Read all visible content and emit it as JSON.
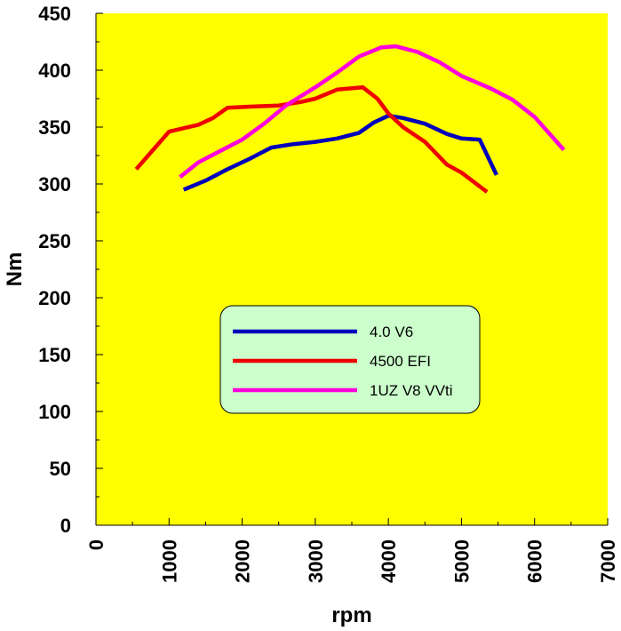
{
  "chart_data": {
    "type": "line",
    "xlabel": "rpm",
    "ylabel": "Nm",
    "xlim": [
      0,
      7000
    ],
    "ylim": [
      0,
      450
    ],
    "xticks": [
      "0",
      "1000",
      "2000",
      "3000",
      "4000",
      "5000",
      "6000",
      "7000"
    ],
    "yticks": [
      "0",
      "50",
      "100",
      "150",
      "200",
      "250",
      "300",
      "350",
      "400",
      "450"
    ],
    "grid": false,
    "plot_background": "#ffff00",
    "legend_background": "#ccffcc",
    "legend_position": "center",
    "series": [
      {
        "name": "4.0 V6",
        "color": "#0000bb",
        "x": [
          1200,
          1500,
          1800,
          2100,
          2400,
          2700,
          3000,
          3300,
          3600,
          3800,
          4000,
          4200,
          4500,
          4800,
          5000,
          5250,
          5480
        ],
        "y": [
          295,
          303,
          313,
          322,
          332,
          335,
          337,
          340,
          345,
          354,
          360,
          358,
          353,
          344,
          340,
          339,
          308
        ]
      },
      {
        "name": "4500 EFI",
        "color": "#ee0000",
        "x": [
          550,
          1000,
          1400,
          1600,
          1800,
          2100,
          2500,
          2800,
          3000,
          3300,
          3650,
          3850,
          4000,
          4200,
          4500,
          4800,
          5000,
          5350
        ],
        "y": [
          313,
          346,
          352,
          358,
          367,
          368,
          369,
          372,
          375,
          383,
          385,
          375,
          362,
          350,
          337,
          317,
          310,
          293
        ]
      },
      {
        "name": "1UZ V8 VVti",
        "color": "#ff00dd",
        "x": [
          1150,
          1400,
          1700,
          2000,
          2300,
          2600,
          3000,
          3300,
          3600,
          3900,
          4100,
          4400,
          4700,
          5000,
          5400,
          5700,
          6000,
          6400
        ],
        "y": [
          306,
          319,
          329,
          339,
          353,
          369,
          385,
          398,
          412,
          420,
          421,
          416,
          407,
          395,
          384,
          374,
          359,
          330
        ]
      }
    ]
  }
}
